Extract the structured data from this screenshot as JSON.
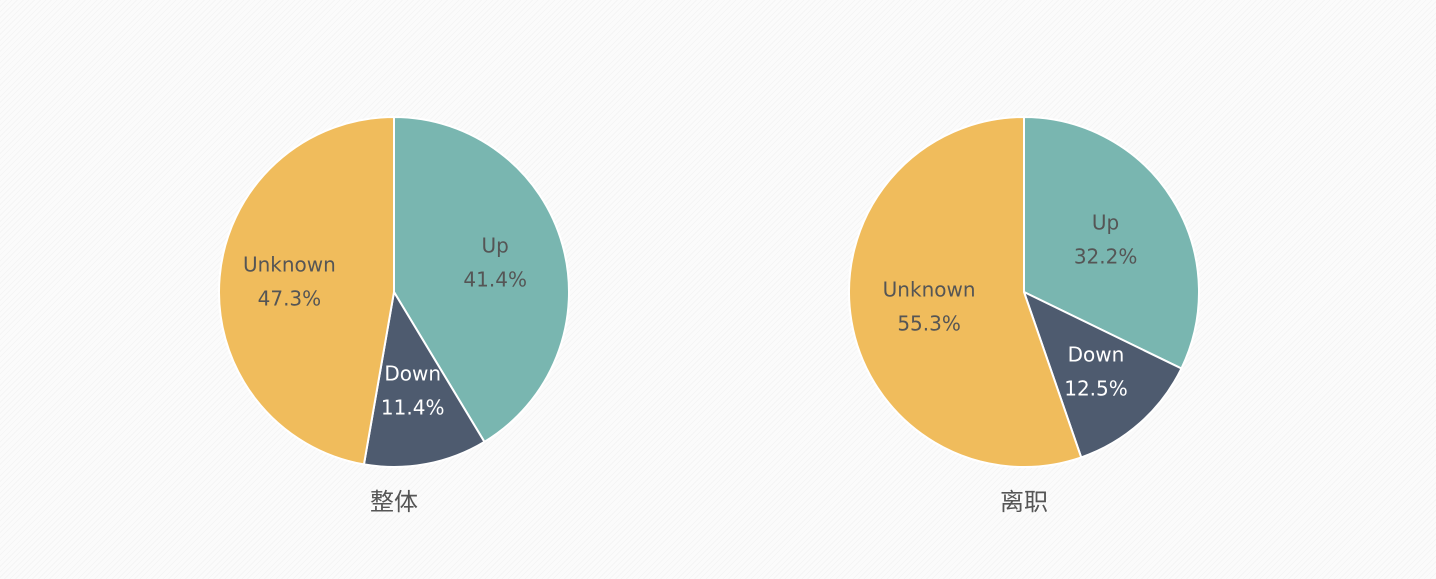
{
  "chart_data": [
    {
      "type": "pie",
      "title": "整体",
      "slices": [
        {
          "label": "Up",
          "value": 41.4,
          "value_label": "41.4%",
          "color": "#79b6b0"
        },
        {
          "label": "Down",
          "value": 11.4,
          "value_label": "11.4%",
          "color": "#4e5b6f"
        },
        {
          "label": "Unknown",
          "value": 47.3,
          "value_label": "47.3%",
          "color": "#f0bc5c"
        }
      ]
    },
    {
      "type": "pie",
      "title": "离职",
      "slices": [
        {
          "label": "Up",
          "value": 32.2,
          "value_label": "32.2%",
          "color": "#79b6b0"
        },
        {
          "label": "Down",
          "value": 12.5,
          "value_label": "12.5%",
          "color": "#4e5b6f"
        },
        {
          "label": "Unknown",
          "value": 55.3,
          "value_label": "55.3%",
          "color": "#f0bc5c"
        }
      ]
    }
  ]
}
